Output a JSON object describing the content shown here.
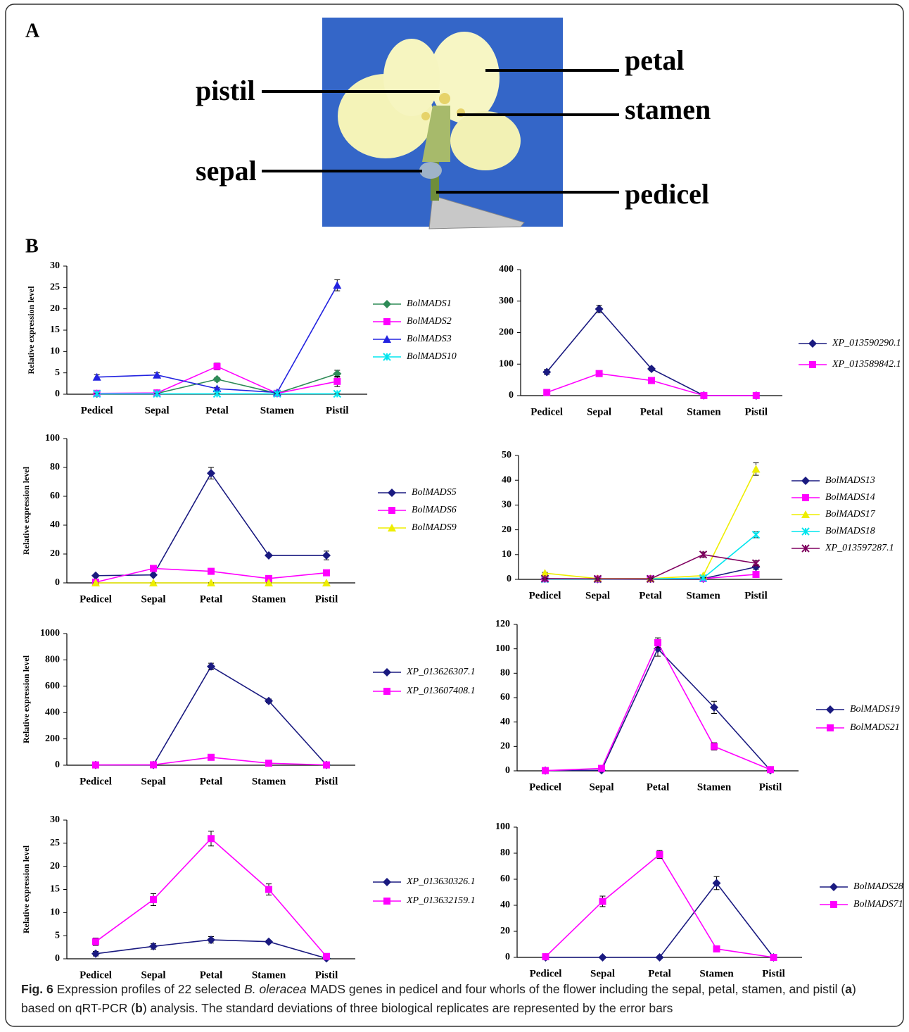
{
  "panel_a": {
    "label": "A",
    "photo_labels": [
      "pistil",
      "petal",
      "stamen",
      "sepal",
      "pedicel"
    ]
  },
  "panel_b": {
    "label": "B"
  },
  "chart_data": [
    {
      "type": "line",
      "ylabel": "Relative expression level",
      "categories": [
        "Pedicel",
        "Sepal",
        "Petal",
        "Stamen",
        "Pistil"
      ],
      "ylim": [
        0,
        30
      ],
      "yticks": [
        0,
        5,
        10,
        15,
        20,
        25,
        30
      ],
      "series": [
        {
          "name": "BolMADS1",
          "color": "#2e8b57",
          "marker": "diamond",
          "values": [
            0.1,
            0.2,
            3.5,
            0.2,
            4.8
          ],
          "errors": [
            0.1,
            0.1,
            0.4,
            0.1,
            0.8
          ]
        },
        {
          "name": "BolMADS2",
          "color": "#ff00ff",
          "marker": "square",
          "values": [
            0.2,
            0.3,
            6.5,
            0.2,
            3.0
          ],
          "errors": [
            0.1,
            0.1,
            0.8,
            0.1,
            1.2
          ]
        },
        {
          "name": "BolMADS3",
          "color": "#2323e0",
          "marker": "triangle",
          "values": [
            4.0,
            4.5,
            1.3,
            0.4,
            25.5
          ],
          "errors": [
            0.6,
            0.5,
            0.3,
            0.1,
            1.3
          ]
        },
        {
          "name": "BolMADS10",
          "color": "#00e5ee",
          "marker": "x",
          "values": [
            0.1,
            0.1,
            0.1,
            0.1,
            0.1
          ],
          "errors": [
            0,
            0,
            0,
            0,
            0
          ]
        }
      ]
    },
    {
      "type": "line",
      "categories": [
        "Pedicel",
        "Sepal",
        "Petal",
        "Stamen",
        "Pistil"
      ],
      "ylim": [
        0,
        400
      ],
      "yticks": [
        0,
        100,
        200,
        300,
        400
      ],
      "series": [
        {
          "name": "XP_013590290.1",
          "color": "#1a1a80",
          "marker": "diamond",
          "values": [
            75,
            275,
            85,
            0.5,
            0
          ],
          "errors": [
            8,
            12,
            5,
            0,
            0
          ]
        },
        {
          "name": "XP_013589842.1",
          "color": "#ff00ff",
          "marker": "square",
          "values": [
            10,
            70,
            48,
            0.3,
            0.2
          ],
          "errors": [
            3,
            8,
            4,
            0,
            0
          ]
        }
      ]
    },
    {
      "type": "line",
      "ylabel": "Relative expression level",
      "categories": [
        "Pedicel",
        "Sepal",
        "Petal",
        "Stamen",
        "Pistil"
      ],
      "ylim": [
        0,
        100
      ],
      "yticks": [
        0,
        20,
        40,
        60,
        80,
        100
      ],
      "series": [
        {
          "name": "BolMADS5",
          "color": "#1a1a80",
          "marker": "diamond",
          "values": [
            5,
            5.5,
            76,
            19,
            19
          ],
          "errors": [
            0.5,
            0.5,
            4,
            0.5,
            3
          ]
        },
        {
          "name": "BolMADS6",
          "color": "#ff00ff",
          "marker": "square",
          "values": [
            0.5,
            10,
            8,
            3,
            7
          ],
          "errors": [
            0.2,
            1,
            1,
            0.5,
            1.5
          ]
        },
        {
          "name": "BolMADS9",
          "color": "#eeee00",
          "marker": "triangle",
          "values": [
            0,
            0,
            0,
            0,
            0
          ],
          "errors": [
            0,
            0,
            0,
            0,
            0
          ]
        }
      ]
    },
    {
      "type": "line",
      "categories": [
        "Pedicel",
        "Sepal",
        "Petal",
        "Stamen",
        "Pistil"
      ],
      "ylim": [
        0,
        50
      ],
      "yticks": [
        0,
        10,
        20,
        30,
        40,
        50
      ],
      "series": [
        {
          "name": "BolMADS13",
          "color": "#1a1a80",
          "marker": "diamond",
          "values": [
            0.2,
            0.1,
            0.2,
            0.3,
            5
          ],
          "errors": [
            0,
            0,
            0,
            0,
            1
          ]
        },
        {
          "name": "BolMADS14",
          "color": "#ff00ff",
          "marker": "square",
          "values": [
            0.2,
            0.1,
            0.2,
            0.3,
            2
          ],
          "errors": [
            0,
            0,
            0,
            0,
            0.5
          ]
        },
        {
          "name": "BolMADS17",
          "color": "#eeee00",
          "marker": "triangle",
          "values": [
            2.5,
            0.3,
            0.3,
            1.5,
            44.5
          ],
          "errors": [
            0.3,
            0,
            0,
            0.2,
            2.5
          ]
        },
        {
          "name": "BolMADS18",
          "color": "#00e5ee",
          "marker": "x",
          "values": [
            0.1,
            0.1,
            0.2,
            0.5,
            18
          ],
          "errors": [
            0,
            0,
            0,
            0.2,
            1.2
          ]
        },
        {
          "name": "XP_013597287.1",
          "color": "#800060",
          "marker": "x",
          "values": [
            0.3,
            0.2,
            0.2,
            10,
            6.5
          ],
          "errors": [
            0.2,
            0.1,
            0.1,
            1,
            1
          ]
        }
      ]
    },
    {
      "type": "line",
      "ylabel": "Relative expression level",
      "categories": [
        "Pedicel",
        "Sepal",
        "Petal",
        "Stamen",
        "Pistil"
      ],
      "ylim": [
        0,
        1000
      ],
      "yticks": [
        0,
        200,
        400,
        600,
        800,
        1000
      ],
      "series": [
        {
          "name": "XP_013626307.1",
          "color": "#1a1a80",
          "marker": "diamond",
          "values": [
            2,
            2,
            750,
            488,
            2
          ],
          "errors": [
            0,
            0,
            25,
            15,
            0
          ]
        },
        {
          "name": "XP_013607408.1",
          "color": "#ff00ff",
          "marker": "square",
          "values": [
            2,
            3,
            60,
            15,
            2
          ],
          "errors": [
            0,
            0,
            5,
            3,
            0
          ]
        }
      ]
    },
    {
      "type": "line",
      "categories": [
        "Pedicel",
        "Sepal",
        "Petal",
        "Stamen",
        "Pistil"
      ],
      "ylim": [
        0,
        120
      ],
      "yticks": [
        0,
        20,
        40,
        60,
        80,
        100,
        120
      ],
      "series": [
        {
          "name": "BolMADS19",
          "color": "#1a1a80",
          "marker": "diamond",
          "values": [
            0.2,
            0.5,
            100,
            52,
            0.5
          ],
          "errors": [
            0,
            0,
            6,
            5,
            0
          ]
        },
        {
          "name": "BolMADS21",
          "color": "#ff00ff",
          "marker": "square",
          "values": [
            0.2,
            2,
            105,
            20,
            1
          ],
          "errors": [
            0,
            0.5,
            4,
            3,
            0
          ]
        }
      ]
    },
    {
      "type": "line",
      "ylabel": "Relative expression level",
      "categories": [
        "Pedicel",
        "Sepal",
        "Petal",
        "Stamen",
        "Pistil"
      ],
      "ylim": [
        0,
        30
      ],
      "yticks": [
        0,
        5,
        10,
        15,
        20,
        25,
        30
      ],
      "series": [
        {
          "name": "XP_013630326.1",
          "color": "#1a1a80",
          "marker": "diamond",
          "values": [
            1.1,
            2.7,
            4.1,
            3.7,
            0.1
          ],
          "errors": [
            0.5,
            0.6,
            0.7,
            0.3,
            0
          ]
        },
        {
          "name": "XP_013632159.1",
          "color": "#ff00ff",
          "marker": "square",
          "values": [
            3.7,
            12.8,
            26,
            15,
            0.5
          ],
          "errors": [
            0.8,
            1.3,
            1.6,
            1.2,
            0.2
          ]
        }
      ]
    },
    {
      "type": "line",
      "categories": [
        "Pedicel",
        "Sepal",
        "Petal",
        "Stamen",
        "Pistil"
      ],
      "ylim": [
        0,
        100
      ],
      "yticks": [
        0,
        20,
        40,
        60,
        80,
        100
      ],
      "series": [
        {
          "name": "BolMADS28",
          "color": "#1a1a80",
          "marker": "diamond",
          "values": [
            0,
            0,
            0,
            57,
            0
          ],
          "errors": [
            0,
            0,
            0,
            5,
            0
          ]
        },
        {
          "name": "BolMADS71",
          "color": "#ff00ff",
          "marker": "square",
          "values": [
            0.5,
            43,
            79,
            6.5,
            0
          ],
          "errors": [
            0,
            4,
            3,
            1,
            0
          ]
        }
      ]
    }
  ],
  "caption": [
    {
      "text": "Fig. 6",
      "style": "bold"
    },
    {
      "text": " Expression profiles of 22 selected ",
      "style": "normal"
    },
    {
      "text": "B. oleracea",
      "style": "italic"
    },
    {
      "text": " MADS genes in pedicel and four whorls of the flower including the sepal, petal, stamen, and pistil (",
      "style": "normal"
    },
    {
      "text": "a",
      "style": "bold"
    },
    {
      "text": ") based on qRT-PCR (",
      "style": "normal"
    },
    {
      "text": "b",
      "style": "bold"
    },
    {
      "text": ") analysis. The standard deviations of three biological replicates are represented by the error bars",
      "style": "normal"
    }
  ]
}
